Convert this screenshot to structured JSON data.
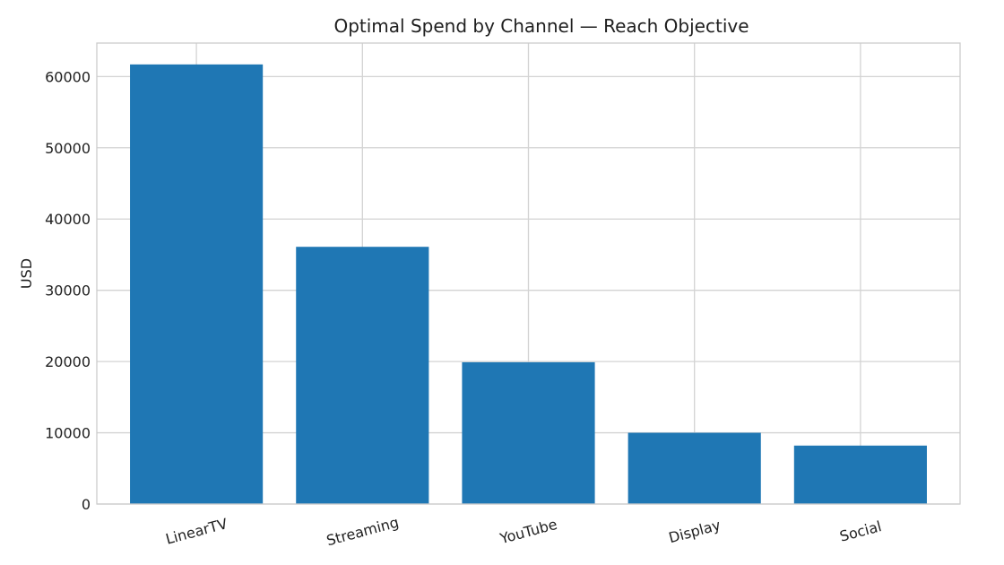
{
  "chart_data": {
    "type": "bar",
    "title": "Optimal Spend by Channel — Reach Objective",
    "xlabel": "",
    "ylabel": "USD",
    "categories": [
      "LinearTV",
      "Streaming",
      "YouTube",
      "Display",
      "Social"
    ],
    "values": [
      61700,
      36100,
      19900,
      10000,
      8200
    ],
    "ylim": [
      0,
      64700
    ],
    "yticks": [
      0,
      10000,
      20000,
      30000,
      40000,
      50000,
      60000
    ],
    "bar_color": "#1f77b4",
    "grid": true,
    "legend": "none"
  }
}
